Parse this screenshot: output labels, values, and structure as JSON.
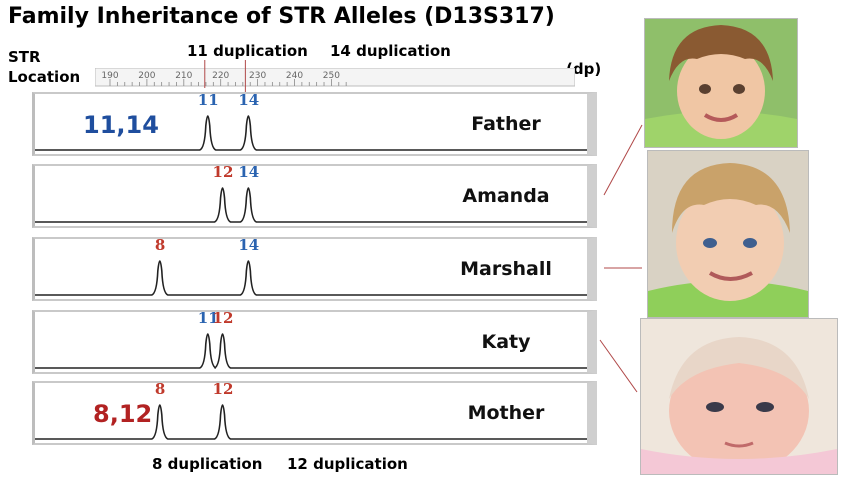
{
  "title": "Family Inheritance of STR Alleles (D13S317)",
  "str_location_label": [
    "STR",
    "Location"
  ],
  "unit_label": "(dp)",
  "ruler_ticks": [
    "190",
    "200",
    "210",
    "220",
    "230",
    "240",
    "250"
  ],
  "top_annotations": [
    "11 duplication",
    "14 duplication"
  ],
  "bottom_annotations": [
    "8 duplication",
    "12 duplication"
  ],
  "colors": {
    "father_allele": "#2a63b0",
    "mother_allele": "#c0392b"
  },
  "members": [
    {
      "name": "Father",
      "genotype": "11,14",
      "genotype_color": "#1f4e9e",
      "peaks": [
        {
          "label": "11",
          "allele_bp": 216.5,
          "color": "#2a63b0"
        },
        {
          "label": "14",
          "allele_bp": 227.5,
          "color": "#2a63b0"
        }
      ]
    },
    {
      "name": "Amanda",
      "genotype": "",
      "peaks": [
        {
          "label": "12",
          "allele_bp": 220.5,
          "color": "#c0392b"
        },
        {
          "label": "14",
          "allele_bp": 227.5,
          "color": "#2a63b0"
        }
      ]
    },
    {
      "name": "Marshall",
      "genotype": "",
      "peaks": [
        {
          "label": "8",
          "allele_bp": 203.5,
          "color": "#c0392b"
        },
        {
          "label": "14",
          "allele_bp": 227.5,
          "color": "#2a63b0"
        }
      ]
    },
    {
      "name": "Katy",
      "genotype": "",
      "peaks": [
        {
          "label": "11",
          "allele_bp": 216.5,
          "color": "#2a63b0"
        },
        {
          "label": "12",
          "allele_bp": 220.5,
          "color": "#c0392b"
        }
      ]
    },
    {
      "name": "Mother",
      "genotype": "8,12",
      "genotype_color": "#b22222",
      "peaks": [
        {
          "label": "8",
          "allele_bp": 203.5,
          "color": "#c0392b"
        },
        {
          "label": "12",
          "allele_bp": 220.5,
          "color": "#c0392b"
        }
      ]
    }
  ],
  "photos": [
    {
      "name": "amanda-photo",
      "icon": "toddler-girl-photo"
    },
    {
      "name": "marshall-photo",
      "icon": "toddler-boy-photo"
    },
    {
      "name": "katy-photo",
      "icon": "baby-photo"
    }
  ]
}
